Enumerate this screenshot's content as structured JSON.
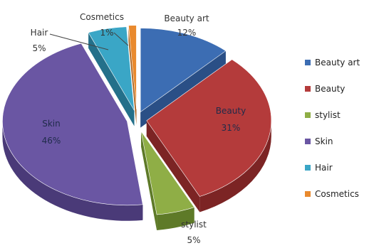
{
  "chart_data": {
    "type": "pie",
    "title": "",
    "exploded": true,
    "three_d": true,
    "legend_position": "right",
    "slices": [
      {
        "name": "Beauty art",
        "value": 12,
        "label": "12%",
        "color": "#3c6db3",
        "side": "#2a4f86"
      },
      {
        "name": "Beauty",
        "value": 31,
        "label": "31%",
        "color": "#b43b3b",
        "side": "#7c2424"
      },
      {
        "name": "stylist",
        "value": 5,
        "label": "5%",
        "color": "#8fae46",
        "side": "#5e7a28"
      },
      {
        "name": "Skin",
        "value": 46,
        "label": "46%",
        "color": "#6a56a3",
        "side": "#4a3a78"
      },
      {
        "name": "Hair",
        "value": 5,
        "label": "5%",
        "color": "#3aa6c6",
        "side": "#24708a"
      },
      {
        "name": "Cosmetics",
        "value": 1,
        "label": "1%",
        "color": "#e98a2e",
        "side": "#a85e18"
      }
    ]
  }
}
